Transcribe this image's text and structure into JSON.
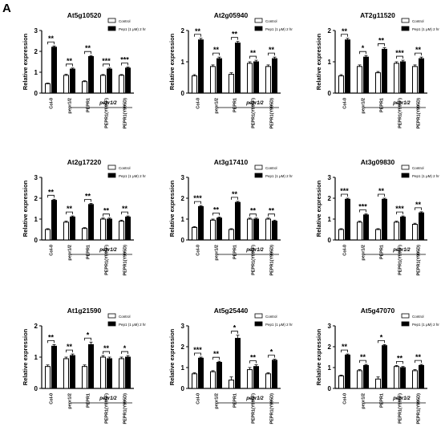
{
  "panel_label": "A",
  "chart_data": [
    {
      "type": "bar",
      "title": "At5g10520",
      "ylabel": "Relative expression",
      "ylim": [
        0,
        3
      ],
      "yticks": [
        "0",
        "1",
        "2",
        "3"
      ],
      "categories": [
        "Col-0",
        "pepr1/2",
        "PEPR1",
        "PEPR1(Y995F)",
        "PEPR1(Y995D)"
      ],
      "group_label": "pepr1/2",
      "legend": [
        "Control",
        "Pep1 (1 μM) 2 hr"
      ],
      "series": [
        {
          "name": "Control",
          "values": [
            0.45,
            0.85,
            0.55,
            0.85,
            0.85
          ],
          "errors": [
            0.03,
            0.05,
            0.04,
            0.04,
            0.04
          ]
        },
        {
          "name": "Pep1 (1 μM) 2 hr",
          "values": [
            2.2,
            1.15,
            1.75,
            1.15,
            1.2
          ],
          "errors": [
            0.06,
            0.05,
            0.05,
            0.05,
            0.05
          ]
        }
      ],
      "significance": [
        "**",
        "**",
        "**",
        "***",
        "***"
      ]
    },
    {
      "type": "bar",
      "title": "At2g05940",
      "ylabel": "Relative expression",
      "ylim": [
        0,
        2
      ],
      "yticks": [
        "0",
        "1",
        "2"
      ],
      "categories": [
        "Col-0",
        "pepr1/2",
        "PEPR1",
        "PEPR1(Y995F)",
        "PEPR1(Y995D)"
      ],
      "group_label": "pepr1/2",
      "legend": [
        "Control",
        "Pep1 (1 μM) 2 hr"
      ],
      "series": [
        {
          "name": "Control",
          "values": [
            0.55,
            0.85,
            0.6,
            0.95,
            0.85
          ],
          "errors": [
            0.04,
            0.05,
            0.05,
            0.05,
            0.05
          ]
        },
        {
          "name": "Pep1 (1 μM) 2 hr",
          "values": [
            1.7,
            1.1,
            1.6,
            1.0,
            1.1
          ],
          "errors": [
            0.05,
            0.05,
            0.05,
            0.05,
            0.05
          ]
        }
      ],
      "significance": [
        "**",
        "**",
        "**",
        "**",
        "**"
      ]
    },
    {
      "type": "bar",
      "title": "AT2g11520",
      "ylabel": "Relative expression",
      "ylim": [
        0,
        2
      ],
      "yticks": [
        "0",
        "1",
        "2"
      ],
      "categories": [
        "Col-0",
        "pepr1/2",
        "PEPR1",
        "PEPR1(Y995F)",
        "PEPR1(Y995D)"
      ],
      "group_label": "pepr1/2",
      "legend": [
        "Control",
        "Pep1 (1 μM) 2 hr"
      ],
      "series": [
        {
          "name": "Control",
          "values": [
            0.55,
            0.85,
            0.65,
            0.95,
            0.85
          ],
          "errors": [
            0.04,
            0.05,
            0.04,
            0.05,
            0.05
          ]
        },
        {
          "name": "Pep1 (1 μM) 2 hr",
          "values": [
            1.7,
            1.15,
            1.4,
            1.0,
            1.1
          ],
          "errors": [
            0.05,
            0.05,
            0.05,
            0.05,
            0.05
          ]
        }
      ],
      "significance": [
        "**",
        "*",
        "**",
        "***",
        "**"
      ]
    },
    {
      "type": "bar",
      "title": "At2g17220",
      "ylabel": "Relative expression",
      "ylim": [
        0,
        3
      ],
      "yticks": [
        "0",
        "1",
        "2",
        "3"
      ],
      "categories": [
        "Col-0",
        "pepr1/2",
        "PEPR1",
        "PEPR1(Y995F)",
        "PEPR1(Y995D)"
      ],
      "group_label": "pepr1/2",
      "legend": [
        "Control",
        "Pep1 (1 μM) 2 hr"
      ],
      "series": [
        {
          "name": "Control",
          "values": [
            0.5,
            0.85,
            0.55,
            1.0,
            0.9
          ],
          "errors": [
            0.04,
            0.05,
            0.04,
            0.05,
            0.05
          ]
        },
        {
          "name": "Pep1 (1 μM) 2 hr",
          "values": [
            1.9,
            1.1,
            1.7,
            1.0,
            1.1
          ],
          "errors": [
            0.05,
            0.05,
            0.05,
            0.05,
            0.05
          ]
        }
      ],
      "significance": [
        "**",
        "**",
        "**",
        "**",
        "**"
      ]
    },
    {
      "type": "bar",
      "title": "At3g17410",
      "ylabel": "Relative expression",
      "ylim": [
        0,
        3
      ],
      "yticks": [
        "0",
        "1",
        "2",
        "3"
      ],
      "categories": [
        "Col-0",
        "pepr1/2",
        "PEPR1",
        "PEPR1(Y995F)",
        "PEPR1(Y995D)"
      ],
      "group_label": "pepr1/2",
      "legend": [
        "Control",
        "Pep1 (1 μM) 2 hr"
      ],
      "series": [
        {
          "name": "Control",
          "values": [
            0.6,
            0.95,
            0.5,
            1.0,
            1.0
          ],
          "errors": [
            0.04,
            0.05,
            0.04,
            0.05,
            0.05
          ]
        },
        {
          "name": "Pep1 (1 μM) 2 hr",
          "values": [
            1.6,
            1.05,
            1.8,
            1.0,
            0.9
          ],
          "errors": [
            0.05,
            0.05,
            0.05,
            0.05,
            0.05
          ]
        }
      ],
      "significance": [
        "***",
        "**",
        "**",
        "**",
        "**"
      ]
    },
    {
      "type": "bar",
      "title": "At3g09830",
      "ylabel": "Relative expression",
      "ylim": [
        0,
        3
      ],
      "yticks": [
        "0",
        "1",
        "2",
        "3"
      ],
      "categories": [
        "Col-0",
        "pepr1/2",
        "PEPR1",
        "PEPR1(Y995F)",
        "PEPR1(Y995D)"
      ],
      "group_label": "pepr1/2",
      "legend": [
        "Control",
        "Pep1 (1 μM) 2 hr"
      ],
      "series": [
        {
          "name": "Control",
          "values": [
            0.5,
            0.85,
            0.5,
            0.85,
            0.75
          ],
          "errors": [
            0.04,
            0.05,
            0.04,
            0.05,
            0.05
          ]
        },
        {
          "name": "Pep1 (1 μM) 2 hr",
          "values": [
            1.95,
            1.2,
            1.95,
            1.1,
            1.3
          ],
          "errors": [
            0.05,
            0.05,
            0.05,
            0.05,
            0.05
          ]
        }
      ],
      "significance": [
        "***",
        "***",
        "**",
        "***",
        "**"
      ]
    },
    {
      "type": "bar",
      "title": "At1g21590",
      "ylabel": "Relative expression",
      "ylim": [
        0,
        2
      ],
      "yticks": [
        "0",
        "1",
        "2"
      ],
      "categories": [
        "Col-0",
        "pepr1/2",
        "PEPR1",
        "PEPR1(Y995F)",
        "PEPR1(Y995D)"
      ],
      "group_label": "pepr1/2",
      "legend": [
        "Control",
        "Pep1 (1 μM) 2 hr"
      ],
      "series": [
        {
          "name": "Control",
          "values": [
            0.7,
            0.95,
            0.7,
            1.0,
            0.95
          ],
          "errors": [
            0.05,
            0.05,
            0.05,
            0.05,
            0.05
          ]
        },
        {
          "name": "Pep1 (1 μM) 2 hr",
          "values": [
            1.35,
            1.05,
            1.4,
            0.95,
            1.0
          ],
          "errors": [
            0.05,
            0.05,
            0.08,
            0.05,
            0.05
          ]
        }
      ],
      "significance": [
        "**",
        "**",
        "*",
        "**",
        "*"
      ]
    },
    {
      "type": "bar",
      "title": "At5g25440",
      "ylabel": "Relative expression",
      "ylim": [
        0,
        3
      ],
      "yticks": [
        "0",
        "1",
        "2",
        "3"
      ],
      "categories": [
        "Col-0",
        "pepr1/2",
        "PEPR1",
        "PEPR1(Y995F)",
        "PEPR1(Y995D)"
      ],
      "group_label": "pepr1/2",
      "legend": [
        "Control",
        "Pep1 (1 μM) 2 hr"
      ],
      "series": [
        {
          "name": "Control",
          "values": [
            0.7,
            0.8,
            0.4,
            0.9,
            0.7
          ],
          "errors": [
            0.05,
            0.05,
            0.15,
            0.1,
            0.05
          ]
        },
        {
          "name": "Pep1 (1 μM) 2 hr",
          "values": [
            1.45,
            1.25,
            2.4,
            1.05,
            1.35
          ],
          "errors": [
            0.05,
            0.05,
            0.15,
            0.08,
            0.05
          ]
        }
      ],
      "significance": [
        "***",
        "**",
        "*",
        "**",
        "*"
      ]
    },
    {
      "type": "bar",
      "title": "At5g47070",
      "ylabel": "Relative expression",
      "ylim": [
        0,
        3
      ],
      "yticks": [
        "0",
        "1",
        "2",
        "3"
      ],
      "categories": [
        "Col-0",
        "pepr1/2",
        "PEPR1",
        "PEPR1(Y995F)",
        "PEPR1(Y995D)"
      ],
      "group_label": "pepr1/2",
      "legend": [
        "Control",
        "Pep1 (1 μM) 2 hr"
      ],
      "series": [
        {
          "name": "Control",
          "values": [
            0.6,
            0.85,
            0.45,
            1.05,
            0.85
          ],
          "errors": [
            0.04,
            0.05,
            0.1,
            0.05,
            0.05
          ]
        },
        {
          "name": "Pep1 (1 μM) 2 hr",
          "values": [
            1.6,
            1.1,
            2.05,
            1.0,
            1.1
          ],
          "errors": [
            0.05,
            0.05,
            0.05,
            0.05,
            0.05
          ]
        }
      ],
      "significance": [
        "**",
        "**",
        "*",
        "**",
        "**"
      ]
    }
  ]
}
